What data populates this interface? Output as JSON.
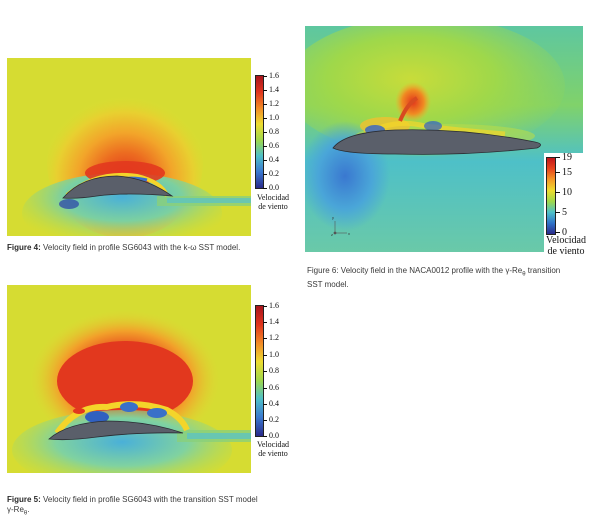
{
  "figures": {
    "fig4": {
      "caption_label": "Figure 4:",
      "caption_text": " Velocity field in profile SG6043 with the k-ω SST model.",
      "colorbar": {
        "ticks": [
          "1.6",
          "1.4",
          "1.2",
          "1.0",
          "0.8",
          "0.6",
          "0.4",
          "0.2",
          "0.0"
        ],
        "title_line1": "Velocidad",
        "title_line2": "de viento"
      }
    },
    "fig5": {
      "caption_label": "Figure 5:",
      "caption_text": " Velocity field in profile SG6043 with the transition SST model",
      "caption_line2": "γ-Re",
      "caption_sub": "θ",
      "caption_end": ".",
      "colorbar": {
        "ticks": [
          "1.6",
          "1.4",
          "1.2",
          "1.0",
          "0.8",
          "0.6",
          "0.4",
          "0.2",
          "0.0"
        ],
        "title_line1": "Velocidad",
        "title_line2": "de viento"
      }
    },
    "fig6": {
      "caption_text": "Figure 6: Velocity field in the NACA0012 profile with the γ-Re",
      "caption_sub": "θ",
      "caption_end": " transition",
      "caption_line2": "SST model.",
      "colorbar": {
        "ticks": [
          "19",
          "15",
          "10",
          "5",
          "0"
        ],
        "title_line1": "Velocidad",
        "title_line2": "de viento"
      },
      "axes_labels": [
        "y",
        "x",
        "z"
      ]
    }
  },
  "colors": {
    "far_field": "#d9dd30",
    "high_velocity": "#e03a1e",
    "low_velocity": "#2a3fa8",
    "wake": "#5fc7c0",
    "airfoil": "#5a5f6a"
  }
}
